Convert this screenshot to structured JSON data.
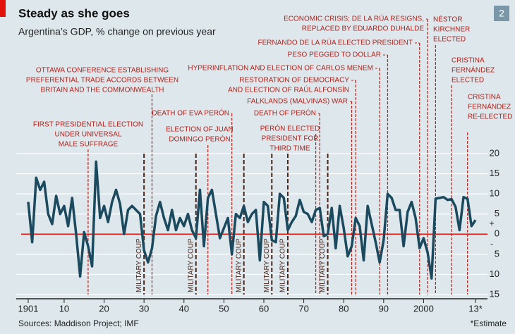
{
  "chart_data": {
    "type": "line",
    "title": "Steady as she goes",
    "subtitle": "Argentina’s GDP, % change on previous year",
    "badge": "2",
    "source": "Sources: Maddison Project; IMF",
    "footnote": "*Estimate",
    "color": "#1b4a5e",
    "zero_line_color": "#e3120b",
    "event_color": "#b5231b",
    "coup_color": "#4a2418",
    "x": [
      1901,
      1902,
      1903,
      1904,
      1905,
      1906,
      1907,
      1908,
      1909,
      1910,
      1911,
      1912,
      1913,
      1914,
      1915,
      1916,
      1917,
      1918,
      1919,
      1920,
      1921,
      1922,
      1923,
      1924,
      1925,
      1926,
      1927,
      1928,
      1929,
      1930,
      1931,
      1932,
      1933,
      1934,
      1935,
      1936,
      1937,
      1938,
      1939,
      1940,
      1941,
      1942,
      1943,
      1944,
      1945,
      1946,
      1947,
      1948,
      1949,
      1950,
      1951,
      1952,
      1953,
      1954,
      1955,
      1956,
      1957,
      1958,
      1959,
      1960,
      1961,
      1962,
      1963,
      1964,
      1965,
      1966,
      1967,
      1968,
      1969,
      1970,
      1971,
      1972,
      1973,
      1974,
      1975,
      1976,
      1977,
      1978,
      1979,
      1980,
      1981,
      1982,
      1983,
      1984,
      1985,
      1986,
      1987,
      1988,
      1989,
      1990,
      1991,
      1992,
      1993,
      1994,
      1995,
      1996,
      1997,
      1998,
      1999,
      2000,
      2001,
      2002,
      2003,
      2004,
      2005,
      2006,
      2007,
      2008,
      2009,
      2010,
      2011,
      2012,
      2013
    ],
    "values": [
      8,
      -2,
      14,
      11,
      13,
      5,
      2.5,
      9.5,
      5,
      7,
      2,
      9,
      0,
      -10.5,
      0.5,
      -3,
      -8,
      18,
      4,
      7,
      3,
      8,
      11,
      7.5,
      0,
      6,
      7,
      6,
      5,
      -4,
      -7,
      -3.5,
      4.5,
      8,
      4,
      1,
      6,
      1,
      4,
      2,
      5,
      1,
      -1,
      11,
      -3,
      9,
      11,
      5,
      -1,
      1.5,
      4,
      -5,
      5,
      4,
      7,
      3,
      5,
      6,
      -6.5,
      8,
      7,
      -1.5,
      -2,
      10,
      9,
      1,
      3,
      4.5,
      8.5,
      5.5,
      5,
      3,
      6,
      6.5,
      -0.5,
      0,
      6.5,
      -3.5,
      7,
      1.5,
      -5.5,
      -3,
      4,
      2,
      -6.5,
      7,
      2.5,
      -2,
      -7,
      -1.5,
      10,
      9,
      6,
      6,
      -3,
      5.5,
      8,
      4,
      -3.5,
      -1,
      -4.5,
      -11,
      8.8,
      9,
      9.2,
      8.5,
      8.7,
      6.8,
      1,
      9.2,
      8.8,
      2,
      3.5
    ],
    "xlim": [
      1898,
      2016
    ],
    "xticks": [
      1901,
      {
        "value": 1910,
        "label": "10"
      },
      {
        "value": 1920,
        "label": "20"
      },
      {
        "value": 1930,
        "label": "30"
      },
      {
        "value": 1940,
        "label": "40"
      },
      {
        "value": 1950,
        "label": "50"
      },
      {
        "value": 1960,
        "label": "60"
      },
      {
        "value": 1970,
        "label": "70"
      },
      {
        "value": 1980,
        "label": "80"
      },
      {
        "value": 1990,
        "label": "90"
      },
      2000,
      {
        "value": 2013,
        "label": "13*"
      }
    ],
    "ylim": [
      -15,
      20
    ],
    "yticks": [
      20,
      15,
      10,
      5,
      0,
      {
        "value": -5,
        "label": "5"
      },
      {
        "value": -10,
        "label": "10"
      },
      {
        "value": -15,
        "label": "15"
      }
    ],
    "y_signs": [
      {
        "value": 2.5,
        "label": "+"
      },
      {
        "value": -2.5,
        "label": "-"
      }
    ],
    "grid": true,
    "events": [
      {
        "year": 1932,
        "label": [
          "OTTAWA CONFERENCE ESTABLISHING",
          "PREFERENTIAL TRADE ACCORDS BETWEEN",
          "BRITAIN AND THE COMMONWEALTH"
        ]
      },
      {
        "year": 1916,
        "label": [
          "FIRST PRESIDENTIAL ELECTION",
          "UNDER UNIVERSAL",
          "MALE SUFFRAGE"
        ]
      },
      {
        "year": 1952,
        "label": [
          "DEATH OF EVA PERÓN"
        ]
      },
      {
        "year": 1946,
        "label": [
          "ELECTION OF JUAN",
          "DOMINGO PERÓN"
        ]
      },
      {
        "year": 1973,
        "label": [
          "PERÓN ELECTED",
          "PRESIDENT FOR",
          "THIRD TIME"
        ]
      },
      {
        "year": 1974,
        "label": [
          "DEATH OF PERÓN"
        ]
      },
      {
        "year": 1982,
        "label": [
          "FALKLANDS (MALVINAS) WAR"
        ]
      },
      {
        "year": 1983,
        "label": [
          "RESTORATION OF DEMOCRACY",
          "AND ELECTION OF RAÚL ALFONSÍN"
        ]
      },
      {
        "year": 1989,
        "label": [
          "HYPERINFLATION AND ELECTION OF CARLOS MENEM"
        ]
      },
      {
        "year": 1991,
        "label": [
          "PESO PEGGED TO DOLLAR"
        ]
      },
      {
        "year": 1999,
        "label": [
          "FERNANDO DE LA RÚA ELECTED PRESIDENT"
        ]
      },
      {
        "year": 2001,
        "label": [
          "ECONOMIC CRISIS; DE LA RÚA RESIGNS,",
          "REPLACED BY EDUARDO DUHALDE"
        ]
      },
      {
        "year": 2003,
        "label": [
          "NÉSTOR",
          "KIRCHNER",
          "ELECTED"
        ]
      },
      {
        "year": 2007,
        "label": [
          "CRISTINA",
          "FERNÁNDEZ",
          "ELECTED"
        ]
      },
      {
        "year": 2011,
        "label": [
          "CRISTINA",
          "FERNÁNDEZ",
          "RE-ELECTED"
        ]
      }
    ],
    "coups": {
      "label": "MILITARY COUP",
      "years": [
        1930,
        1943,
        1955,
        1962,
        1966,
        1976
      ]
    }
  }
}
